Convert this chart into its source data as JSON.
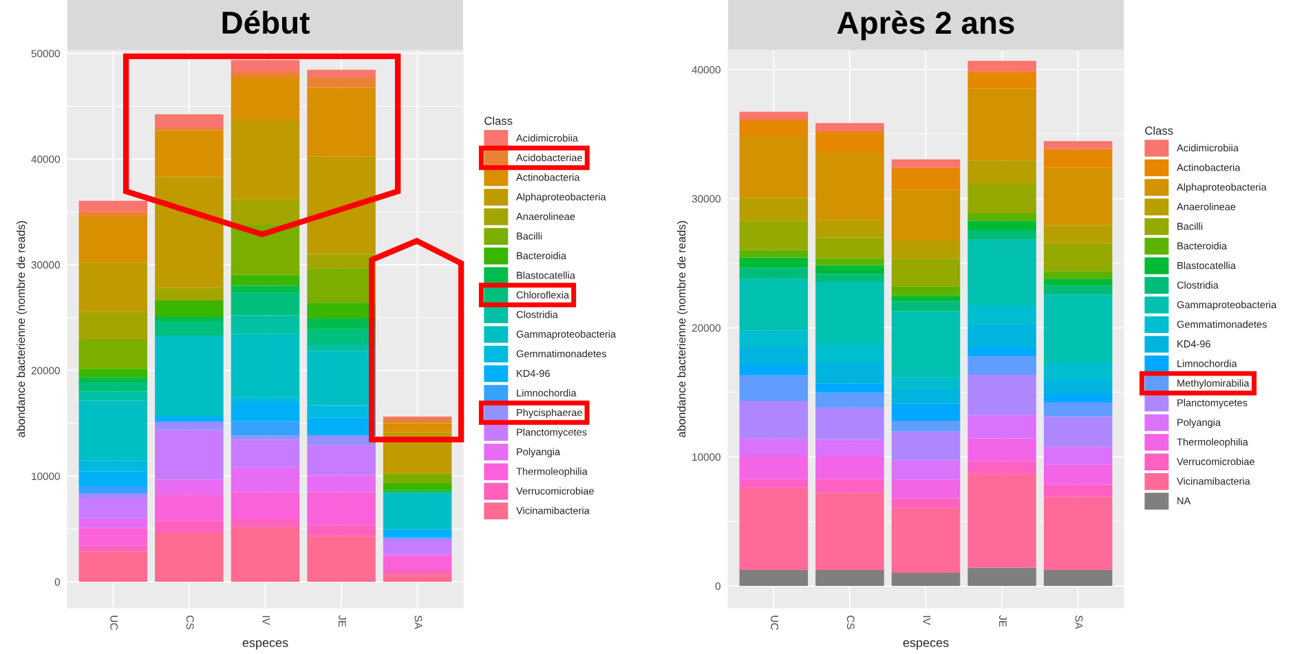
{
  "chart_data": [
    {
      "type": "bar",
      "title": "Début",
      "xlabel": "especes",
      "ylabel": "abondance bacterienne (nombre de reads)",
      "legend_title": "Class",
      "categories": [
        "UC",
        "CS",
        "IV",
        "JE",
        "SA"
      ],
      "stacked": true,
      "ylim": [
        -2470,
        50300
      ],
      "yticks": [
        0,
        10000,
        20000,
        30000,
        40000,
        50000
      ],
      "grid": true,
      "legend": "right",
      "series": [
        {
          "name": "Vicinamibacteria",
          "color": "#ff6c91",
          "values": [
            2900,
            4620,
            5230,
            4330,
            700
          ]
        },
        {
          "name": "Verrucomicrobiae",
          "color": "#ff62bc",
          "values": [
            500,
            1160,
            700,
            1020,
            470
          ]
        },
        {
          "name": "Thermoleophilia",
          "color": "#fa62db",
          "values": [
            1700,
            2470,
            2560,
            3140,
            1280
          ]
        },
        {
          "name": "Polyangia",
          "color": "#e76bf3",
          "values": [
            900,
            1420,
            2330,
            1570,
            170
          ]
        },
        {
          "name": "Planctomycetes",
          "color": "#c77cff",
          "values": [
            2000,
            4680,
            2620,
            2880,
            1280
          ]
        },
        {
          "name": "Phycisphaerae",
          "color": "#9590ff",
          "values": [
            400,
            810,
            410,
            930,
            290
          ]
        },
        {
          "name": "Limnochordia",
          "color": "#35a2ff",
          "values": [
            650,
            0,
            1340,
            0,
            0
          ]
        },
        {
          "name": "KD4-96",
          "color": "#00b0f6",
          "values": [
            1400,
            520,
            1800,
            1660,
            810
          ]
        },
        {
          "name": "Gemmatimonadetes",
          "color": "#00bae0",
          "values": [
            1050,
            0,
            470,
            1160,
            0
          ]
        },
        {
          "name": "Gammaproteobacteria",
          "color": "#00bfc4",
          "values": [
            5650,
            7620,
            6020,
            5120,
            3430
          ]
        },
        {
          "name": "Clostridia",
          "color": "#00c1a3",
          "values": [
            850,
            0,
            1740,
            640,
            0
          ]
        },
        {
          "name": "Chloroflexia",
          "color": "#00bf7d",
          "values": [
            800,
            1370,
            2130,
            1450,
            0
          ]
        },
        {
          "name": "Blastocatellia",
          "color": "#00bb4e",
          "values": [
            550,
            380,
            670,
            1020,
            200
          ]
        },
        {
          "name": "Bacteroidia",
          "color": "#39b600",
          "values": [
            800,
            1570,
            1020,
            1480,
            670
          ]
        },
        {
          "name": "Bacilli",
          "color": "#7cae00",
          "values": [
            2750,
            0,
            4740,
            3260,
            930
          ]
        },
        {
          "name": "Anaerolineae",
          "color": "#a3a500",
          "values": [
            2650,
            1220,
            2410,
            1340,
            0
          ]
        },
        {
          "name": "Alphaproteobacteria",
          "color": "#c09b00",
          "values": [
            4700,
            10460,
            7470,
            9250,
            3920
          ]
        },
        {
          "name": "Actinobacteria",
          "color": "#d89000",
          "values": [
            4300,
            4420,
            4040,
            6510,
            870
          ]
        },
        {
          "name": "Acidobacteriae",
          "color": "#ea8331",
          "values": [
            500,
            230,
            520,
            930,
            410
          ]
        },
        {
          "name": "Acidimicrobiia",
          "color": "#f8766d",
          "values": [
            1000,
            1280,
            1160,
            760,
            200
          ]
        }
      ]
    },
    {
      "type": "bar",
      "title": "Après 2 ans",
      "xlabel": "especes",
      "ylabel": "abondance bacterienne (nombre de reads)",
      "legend_title": "Class",
      "categories": [
        "UC",
        "CS",
        "IV",
        "JE",
        "SA"
      ],
      "stacked": true,
      "ylim": [
        -1700,
        41500
      ],
      "yticks": [
        0,
        10000,
        20000,
        30000,
        40000
      ],
      "grid": true,
      "legend": "right",
      "series": [
        {
          "name": "NA",
          "color": "#7f7f7f",
          "values": [
            1230,
            1230,
            1020,
            1420,
            1230
          ]
        },
        {
          "name": "Vicinamibacteria",
          "color": "#ff6a98",
          "values": [
            6350,
            5990,
            5040,
            7290,
            5670
          ]
        },
        {
          "name": "Verrucomicrobiae",
          "color": "#ff61c3",
          "values": [
            700,
            1060,
            740,
            960,
            960
          ]
        },
        {
          "name": "Thermoleophilia",
          "color": "#f265e7",
          "values": [
            1850,
            1740,
            1420,
            1760,
            1530
          ]
        },
        {
          "name": "Polyangia",
          "color": "#db72fb",
          "values": [
            1300,
            1300,
            1490,
            1810,
            1400
          ]
        },
        {
          "name": "Planctomycetes",
          "color": "#ae87ff",
          "values": [
            2910,
            2490,
            2250,
            3120,
            2340
          ]
        },
        {
          "name": "Methylomirabilia",
          "color": "#619cff",
          "values": [
            1980,
            1170,
            830,
            1420,
            1100
          ]
        },
        {
          "name": "Limnochordia",
          "color": "#00a9ff",
          "values": [
            790,
            700,
            1340,
            600,
            640
          ]
        },
        {
          "name": "KD4-96",
          "color": "#00b4e0",
          "values": [
            1380,
            1640,
            1060,
            1810,
            1060
          ]
        },
        {
          "name": "Gemmatimonadetes",
          "color": "#00bdd0",
          "values": [
            1320,
            1380,
            1000,
            1550,
            1380
          ]
        },
        {
          "name": "Gammaproteobacteria",
          "color": "#00c0af",
          "values": [
            3960,
            4850,
            5100,
            5070,
            5260
          ]
        },
        {
          "name": "Clostridia",
          "color": "#00bc7a",
          "values": [
            890,
            630,
            760,
            740,
            680
          ]
        },
        {
          "name": "Blastocatellia",
          "color": "#00b935",
          "values": [
            760,
            680,
            420,
            720,
            550
          ]
        },
        {
          "name": "Bacteroidia",
          "color": "#5bb300",
          "values": [
            610,
            530,
            740,
            610,
            590
          ]
        },
        {
          "name": "Bacilli",
          "color": "#95a900",
          "values": [
            2240,
            1590,
            2140,
            2280,
            2160
          ]
        },
        {
          "name": "Anaerolineae",
          "color": "#b79f00",
          "values": [
            1820,
            1370,
            1400,
            1800,
            1400
          ]
        },
        {
          "name": "Alphaproteobacteria",
          "color": "#d39200",
          "values": [
            4800,
            5160,
            3950,
            5580,
            4480
          ]
        },
        {
          "name": "Actinobacteria",
          "color": "#e58700",
          "values": [
            1230,
            1710,
            1710,
            1290,
            1420
          ]
        },
        {
          "name": "Acidimicrobiia",
          "color": "#f8766d",
          "values": [
            610,
            630,
            630,
            850,
            610
          ]
        }
      ]
    }
  ]
}
